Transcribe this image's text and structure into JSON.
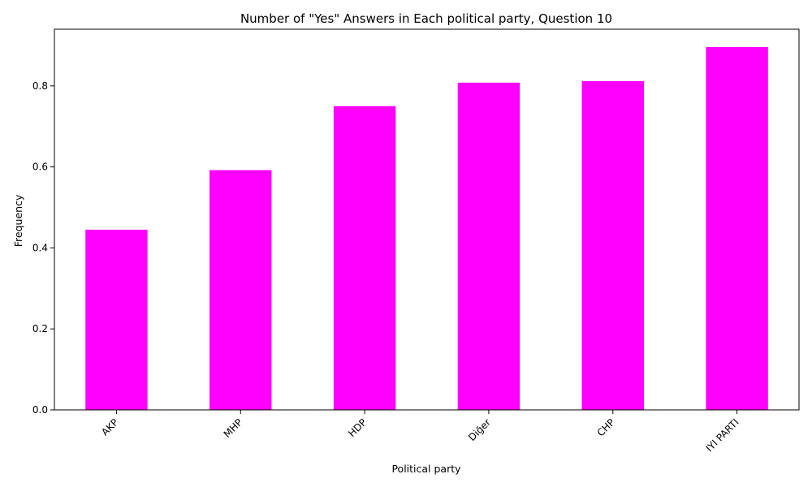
{
  "chart_data": {
    "type": "bar",
    "title": "Number of \"Yes\" Answers in Each political party, Question 10",
    "xlabel": "Political party",
    "ylabel": "Frequency",
    "categories": [
      "AKP",
      "MHP",
      "HDP",
      "Diğer",
      "CHP",
      "IYI PARTI"
    ],
    "values": [
      0.445,
      0.592,
      0.75,
      0.808,
      0.812,
      0.896
    ],
    "ylim": [
      0,
      0.94
    ],
    "yticks": [
      0.0,
      0.2,
      0.4,
      0.6,
      0.8
    ],
    "ytick_labels": [
      "0.0",
      "0.2",
      "0.4",
      "0.6",
      "0.8"
    ],
    "bar_color": "#ff00ff",
    "grid": false,
    "legend": "none"
  }
}
